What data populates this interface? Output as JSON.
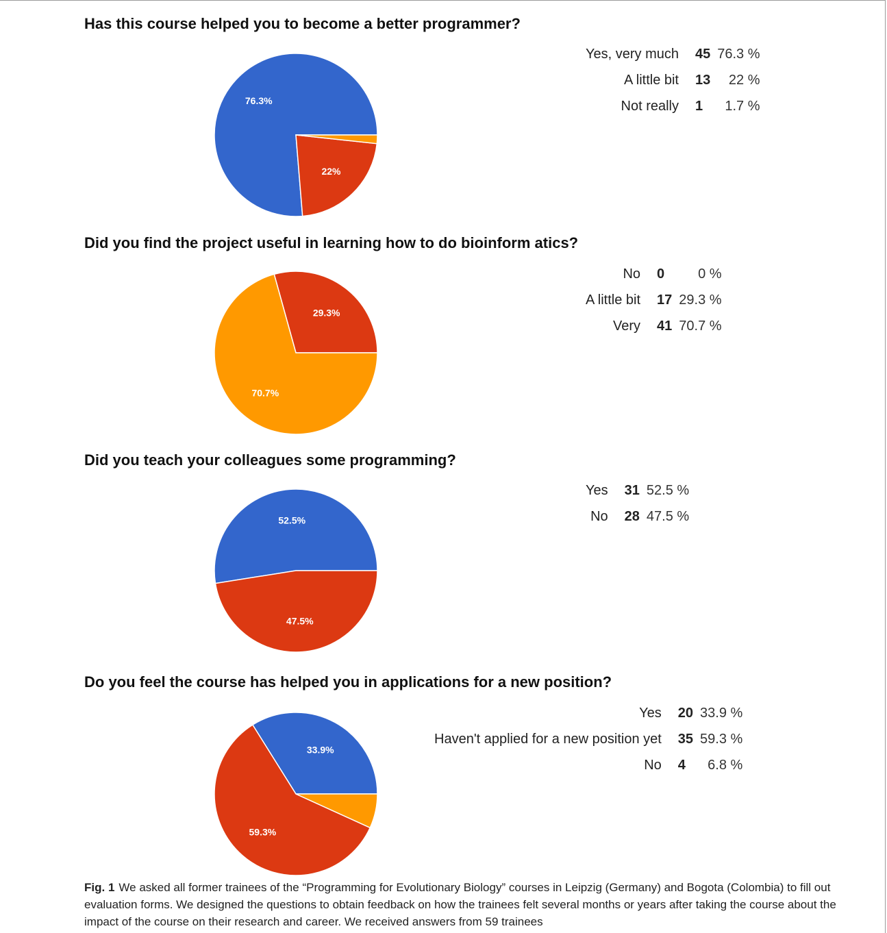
{
  "caption": {
    "label": "Fig. 1",
    "text": "We asked all former trainees of the “Programming for Evolutionary Biology” courses in Leipzig (Germany) and Bogota (Colombia) to fill out evaluation forms. We designed the questions to obtain feedback on how the trainees felt several months or years after taking the course about the impact of the course on their research and career. We received answers from 59 trainees"
  },
  "chart_data": [
    {
      "type": "pie",
      "title": "Has this course helped you to become a better programmer?",
      "legend_position": "right",
      "slices": [
        {
          "label": "Yes, very much",
          "count": "45",
          "percent_text": "76.3 %",
          "value": 76.3,
          "slice_label": "76.3%",
          "color": "#3366cc"
        },
        {
          "label": "A little bit",
          "count": "13",
          "percent_text": "22 %",
          "value": 22.0,
          "slice_label": "22%",
          "color": "#dc3912"
        },
        {
          "label": "Not really",
          "count": "1",
          "percent_text": "1.7 %",
          "value": 1.7,
          "slice_label": "",
          "color": "#ff9900"
        }
      ]
    },
    {
      "type": "pie",
      "title": "Did you find the project useful in learning how to do bioinform atics?",
      "legend_position": "right",
      "slices": [
        {
          "label": "No",
          "count": "0",
          "percent_text": "0 %",
          "value": 0,
          "slice_label": "",
          "color": "#3366cc"
        },
        {
          "label": "A little bit",
          "count": "17",
          "percent_text": "29.3 %",
          "value": 29.3,
          "slice_label": "29.3%",
          "color": "#dc3912"
        },
        {
          "label": "Very",
          "count": "41",
          "percent_text": "70.7 %",
          "value": 70.7,
          "slice_label": "70.7%",
          "color": "#ff9900"
        }
      ]
    },
    {
      "type": "pie",
      "title": "Did you teach your colleagues some programming?",
      "legend_position": "right",
      "slices": [
        {
          "label": "Yes",
          "count": "31",
          "percent_text": "52.5 %",
          "value": 52.5,
          "slice_label": "52.5%",
          "color": "#3366cc"
        },
        {
          "label": "No",
          "count": "28",
          "percent_text": "47.5 %",
          "value": 47.5,
          "slice_label": "47.5%",
          "color": "#dc3912"
        }
      ]
    },
    {
      "type": "pie",
      "title": "Do you feel the course has helped you in applications for a new position?",
      "legend_position": "right",
      "slices": [
        {
          "label": "Yes",
          "count": "20",
          "percent_text": "33.9 %",
          "value": 33.9,
          "slice_label": "33.9%",
          "color": "#3366cc"
        },
        {
          "label": "Haven't applied for a new position yet",
          "count": "35",
          "percent_text": "59.3 %",
          "value": 59.3,
          "slice_label": "59.3%",
          "color": "#dc3912"
        },
        {
          "label": "No",
          "count": "4",
          "percent_text": "6.8 %",
          "value": 6.8,
          "slice_label": "",
          "color": "#ff9900"
        }
      ]
    }
  ]
}
